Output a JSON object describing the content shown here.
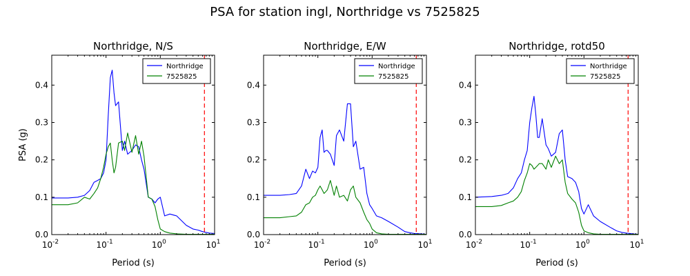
{
  "figure": {
    "suptitle": "PSA for station ingl, Northridge vs 7525825"
  },
  "colors": {
    "northridge": "#0000ff",
    "event_7525825": "#008000",
    "vline": "#ff0000"
  },
  "chart_data": [
    {
      "type": "line",
      "title": "Northridge, N/S",
      "xlabel": "Period (s)",
      "ylabel": "PSA (g)",
      "xscale": "log",
      "xlim": [
        0.01,
        10
      ],
      "ylim": [
        0,
        0.48
      ],
      "xticks": [
        {
          "v": 0.01,
          "b": "10",
          "e": "-2"
        },
        {
          "v": 0.1,
          "b": "10",
          "e": "-1"
        },
        {
          "v": 1,
          "b": "10",
          "e": "0"
        },
        {
          "v": 10,
          "b": "10",
          "e": "1"
        }
      ],
      "yticks": [
        "0.0",
        "0.1",
        "0.2",
        "0.3",
        "0.4"
      ],
      "legend": {
        "position": "top-right",
        "entries": [
          "Northridge",
          "7525825"
        ]
      },
      "vline": {
        "x": 6.5,
        "style": "dashed"
      },
      "series": [
        {
          "name": "Northridge",
          "x": [
            0.01,
            0.02,
            0.03,
            0.04,
            0.05,
            0.06,
            0.07,
            0.08,
            0.09,
            0.1,
            0.11,
            0.12,
            0.13,
            0.14,
            0.15,
            0.17,
            0.2,
            0.22,
            0.25,
            0.3,
            0.35,
            0.4,
            0.45,
            0.5,
            0.6,
            0.7,
            0.8,
            0.9,
            1.0,
            1.2,
            1.5,
            2.0,
            3.0,
            4.0,
            5.0,
            6.0,
            8.0,
            10.0
          ],
          "y": [
            0.098,
            0.098,
            0.1,
            0.105,
            0.118,
            0.14,
            0.145,
            0.15,
            0.165,
            0.2,
            0.32,
            0.42,
            0.44,
            0.38,
            0.345,
            0.355,
            0.225,
            0.25,
            0.215,
            0.225,
            0.24,
            0.235,
            0.2,
            0.175,
            0.1,
            0.095,
            0.085,
            0.095,
            0.1,
            0.05,
            0.055,
            0.05,
            0.025,
            0.015,
            0.012,
            0.008,
            0.004,
            0.003
          ]
        },
        {
          "name": "7525825",
          "x": [
            0.01,
            0.02,
            0.03,
            0.04,
            0.05,
            0.06,
            0.07,
            0.08,
            0.09,
            0.1,
            0.11,
            0.12,
            0.13,
            0.14,
            0.15,
            0.17,
            0.2,
            0.22,
            0.25,
            0.3,
            0.35,
            0.4,
            0.45,
            0.5,
            0.6,
            0.7,
            0.8,
            0.9,
            1.0,
            1.2,
            1.5,
            2.0,
            3.0,
            4.0,
            5.0,
            6.0,
            8.0,
            10.0
          ],
          "y": [
            0.08,
            0.08,
            0.085,
            0.1,
            0.095,
            0.11,
            0.125,
            0.15,
            0.18,
            0.215,
            0.235,
            0.245,
            0.2,
            0.165,
            0.18,
            0.245,
            0.25,
            0.225,
            0.272,
            0.22,
            0.265,
            0.215,
            0.25,
            0.21,
            0.1,
            0.095,
            0.075,
            0.04,
            0.015,
            0.008,
            0.004,
            0.002,
            0.001,
            0.001,
            0.001,
            0.001,
            0.001,
            0.001
          ]
        }
      ]
    },
    {
      "type": "line",
      "title": "Northridge, E/W",
      "xlabel": "Period (s)",
      "ylabel": "",
      "xscale": "log",
      "xlim": [
        0.01,
        10
      ],
      "ylim": [
        0,
        0.48
      ],
      "xticks": [
        {
          "v": 0.01,
          "b": "10",
          "e": "-2"
        },
        {
          "v": 0.1,
          "b": "10",
          "e": "-1"
        },
        {
          "v": 1,
          "b": "10",
          "e": "0"
        },
        {
          "v": 10,
          "b": "10",
          "e": "1"
        }
      ],
      "yticks": [
        "0.0",
        "0.1",
        "0.2",
        "0.3",
        "0.4"
      ],
      "legend": {
        "position": "top-right",
        "entries": [
          "Northridge",
          "7525825"
        ]
      },
      "vline": {
        "x": 6.5,
        "style": "dashed"
      },
      "series": [
        {
          "name": "Northridge",
          "x": [
            0.01,
            0.02,
            0.03,
            0.04,
            0.05,
            0.06,
            0.07,
            0.08,
            0.09,
            0.1,
            0.11,
            0.12,
            0.13,
            0.14,
            0.15,
            0.17,
            0.2,
            0.22,
            0.25,
            0.3,
            0.35,
            0.4,
            0.45,
            0.5,
            0.6,
            0.7,
            0.8,
            0.9,
            1.0,
            1.2,
            1.5,
            2.0,
            3.0,
            4.0,
            5.0,
            6.0,
            8.0,
            10.0
          ],
          "y": [
            0.105,
            0.105,
            0.107,
            0.11,
            0.13,
            0.175,
            0.15,
            0.17,
            0.165,
            0.18,
            0.26,
            0.28,
            0.22,
            0.225,
            0.225,
            0.215,
            0.185,
            0.265,
            0.28,
            0.25,
            0.35,
            0.35,
            0.235,
            0.25,
            0.175,
            0.18,
            0.11,
            0.08,
            0.07,
            0.05,
            0.045,
            0.035,
            0.02,
            0.008,
            0.005,
            0.003,
            0.002,
            0.001
          ]
        },
        {
          "name": "7525825",
          "x": [
            0.01,
            0.02,
            0.03,
            0.04,
            0.05,
            0.06,
            0.07,
            0.08,
            0.09,
            0.1,
            0.11,
            0.12,
            0.13,
            0.14,
            0.15,
            0.17,
            0.2,
            0.22,
            0.25,
            0.3,
            0.35,
            0.4,
            0.45,
            0.5,
            0.6,
            0.7,
            0.8,
            0.9,
            1.0,
            1.2,
            1.5,
            2.0,
            3.0,
            4.0,
            5.0,
            6.0,
            8.0,
            10.0
          ],
          "y": [
            0.045,
            0.045,
            0.048,
            0.05,
            0.06,
            0.08,
            0.085,
            0.1,
            0.105,
            0.12,
            0.13,
            0.12,
            0.11,
            0.115,
            0.12,
            0.145,
            0.105,
            0.13,
            0.1,
            0.105,
            0.09,
            0.12,
            0.13,
            0.1,
            0.085,
            0.06,
            0.04,
            0.03,
            0.015,
            0.005,
            0.002,
            0.001,
            0.001,
            0.001,
            0.001,
            0.001,
            0.001,
            0.001
          ]
        }
      ]
    },
    {
      "type": "line",
      "title": "Northridge, rotd50",
      "xlabel": "Period (s)",
      "ylabel": "",
      "xscale": "log",
      "xlim": [
        0.01,
        10
      ],
      "ylim": [
        0,
        0.48
      ],
      "xticks": [
        {
          "v": 0.01,
          "b": "10",
          "e": "-2"
        },
        {
          "v": 0.1,
          "b": "10",
          "e": "-1"
        },
        {
          "v": 1,
          "b": "10",
          "e": "0"
        },
        {
          "v": 10,
          "b": "10",
          "e": "1"
        }
      ],
      "yticks": [
        "0.0",
        "0.1",
        "0.2",
        "0.3",
        "0.4"
      ],
      "legend": {
        "position": "top-right",
        "entries": [
          "Northridge",
          "7525825"
        ]
      },
      "vline": {
        "x": 6.5,
        "style": "dashed"
      },
      "series": [
        {
          "name": "Northridge",
          "x": [
            0.01,
            0.02,
            0.03,
            0.04,
            0.05,
            0.06,
            0.07,
            0.08,
            0.09,
            0.1,
            0.11,
            0.12,
            0.13,
            0.14,
            0.15,
            0.17,
            0.2,
            0.22,
            0.25,
            0.3,
            0.35,
            0.4,
            0.45,
            0.5,
            0.6,
            0.7,
            0.8,
            0.9,
            1.0,
            1.2,
            1.5,
            2.0,
            3.0,
            4.0,
            5.0,
            6.0,
            8.0,
            10.0
          ],
          "y": [
            0.1,
            0.102,
            0.105,
            0.11,
            0.125,
            0.15,
            0.165,
            0.2,
            0.225,
            0.3,
            0.34,
            0.37,
            0.32,
            0.26,
            0.26,
            0.31,
            0.24,
            0.23,
            0.21,
            0.22,
            0.27,
            0.28,
            0.2,
            0.155,
            0.15,
            0.14,
            0.115,
            0.07,
            0.055,
            0.08,
            0.05,
            0.035,
            0.02,
            0.01,
            0.006,
            0.004,
            0.002,
            0.001
          ]
        },
        {
          "name": "7525825",
          "x": [
            0.01,
            0.02,
            0.03,
            0.04,
            0.05,
            0.06,
            0.07,
            0.08,
            0.09,
            0.1,
            0.11,
            0.12,
            0.13,
            0.14,
            0.15,
            0.17,
            0.2,
            0.22,
            0.25,
            0.3,
            0.35,
            0.4,
            0.45,
            0.5,
            0.6,
            0.7,
            0.8,
            0.9,
            1.0,
            1.2,
            1.5,
            2.0,
            3.0,
            4.0,
            5.0,
            6.0,
            8.0,
            10.0
          ],
          "y": [
            0.075,
            0.075,
            0.078,
            0.085,
            0.09,
            0.1,
            0.115,
            0.145,
            0.165,
            0.19,
            0.185,
            0.175,
            0.18,
            0.185,
            0.19,
            0.19,
            0.175,
            0.2,
            0.18,
            0.21,
            0.19,
            0.2,
            0.14,
            0.11,
            0.095,
            0.085,
            0.06,
            0.025,
            0.01,
            0.005,
            0.002,
            0.001,
            0.001,
            0.001,
            0.001,
            0.001,
            0.001,
            0.001
          ]
        }
      ]
    }
  ]
}
